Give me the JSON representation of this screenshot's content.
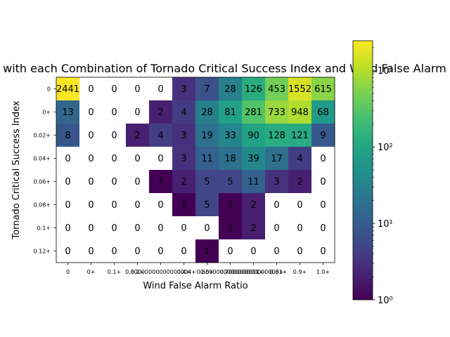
{
  "chart_data": {
    "type": "heatmap",
    "title": "Days with each Combination of Tornado Critical Success Index and Wind False Alarm Ratio",
    "xlabel": "Wind False Alarm Ratio",
    "ylabel": "Tornado Critical Success Index",
    "x_categories": [
      "0",
      "0+",
      "0.1+",
      "0.2+",
      "0.30000000000000004+",
      "0.4+",
      "0.5+",
      "0.6000000000000001+",
      "0.7000000000000001+",
      "0.8+",
      "0.9+",
      "1.0+"
    ],
    "x_tick_display": [
      "0",
      "0+",
      "0.1+",
      "0.2+",
      "0.30000000000000004+",
      "0.4+",
      "0.5+",
      "0.6000000000000001+",
      "0.7000000000000001+",
      "0.8+",
      "0.9+",
      "1.0+"
    ],
    "y_categories": [
      "0",
      "0+",
      "0.02+",
      "0.04+",
      "0.06+",
      "0.08+",
      "0.1+",
      "0.12+"
    ],
    "values": [
      [
        2441,
        0,
        0,
        0,
        0,
        3,
        7,
        28,
        126,
        453,
        1552,
        615
      ],
      [
        13,
        0,
        0,
        0,
        2,
        4,
        28,
        81,
        281,
        733,
        948,
        68
      ],
      [
        8,
        0,
        0,
        2,
        4,
        3,
        19,
        33,
        90,
        128,
        121,
        9
      ],
      [
        0,
        0,
        0,
        0,
        0,
        3,
        11,
        18,
        39,
        17,
        4,
        0
      ],
      [
        0,
        0,
        0,
        0,
        1,
        2,
        5,
        5,
        11,
        3,
        2,
        0
      ],
      [
        0,
        0,
        0,
        0,
        0,
        1,
        5,
        1,
        2,
        0,
        0,
        0
      ],
      [
        0,
        0,
        0,
        0,
        0,
        0,
        0,
        1,
        2,
        0,
        0,
        0
      ],
      [
        0,
        0,
        0,
        0,
        0,
        0,
        1,
        0,
        0,
        0,
        0,
        0
      ]
    ],
    "color_scale": "log",
    "colormap": "viridis",
    "vmin": 1,
    "vmax": 2441,
    "colorbar_ticks": [
      {
        "value": 1,
        "label": "10⁰"
      },
      {
        "value": 10,
        "label": "10¹"
      },
      {
        "value": 100,
        "label": "10²"
      },
      {
        "value": 1000,
        "label": "10³"
      }
    ],
    "zero_cells_color": "#ffffff",
    "grid": false
  }
}
